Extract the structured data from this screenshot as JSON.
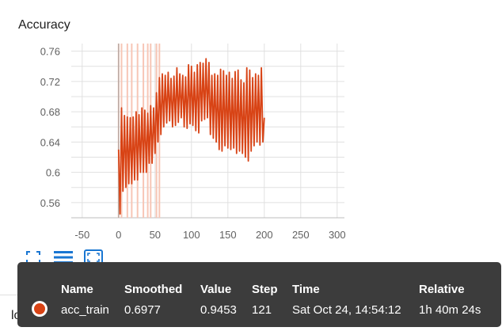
{
  "card": {
    "title": "Accuracy",
    "next_card_title": "loss"
  },
  "toolbar": {
    "icons": [
      "fit-domain-icon",
      "toggle-data-table-icon",
      "expand-card-icon"
    ]
  },
  "tooltip": {
    "headers": {
      "name": "Name",
      "smoothed": "Smoothed",
      "value": "Value",
      "step": "Step",
      "time": "Time",
      "relative": "Relative"
    },
    "row": {
      "name": "acc_train",
      "smoothed": "0.6977",
      "value": "0.9453",
      "step": "121",
      "time": "Sat Oct 24, 14:54:12",
      "relative": "1h 40m 24s"
    }
  },
  "colors": {
    "series": "#d84315",
    "series_faded": "#f7c6b6",
    "grid": "#e0e0e0",
    "tooltip_bg": "#3c3c3c"
  },
  "chart_data": {
    "type": "line",
    "title": "Accuracy",
    "xlabel": "",
    "ylabel": "",
    "xlim": [
      -65,
      310
    ],
    "ylim": [
      0.54,
      0.77
    ],
    "x_ticks": [
      -50,
      0,
      50,
      100,
      150,
      200,
      250,
      300
    ],
    "y_ticks": [
      0.56,
      0.6,
      0.64,
      0.68,
      0.72,
      0.76
    ],
    "y_tick_labels": [
      "0.56",
      "0.6",
      "0.64",
      "0.68",
      "0.72",
      "0.76"
    ],
    "grid": true,
    "series": [
      {
        "color": "#d84315",
        "x": [
          0,
          2,
          4,
          6,
          8,
          10,
          12,
          14,
          16,
          18,
          20,
          22,
          24,
          26,
          28,
          30,
          32,
          34,
          36,
          38,
          40,
          42,
          44,
          46,
          48,
          50,
          52,
          54,
          56,
          58,
          60,
          62,
          64,
          66,
          68,
          70,
          72,
          74,
          76,
          78,
          80,
          82,
          84,
          86,
          88,
          90,
          92,
          94,
          96,
          98,
          100,
          102,
          104,
          106,
          108,
          110,
          112,
          114,
          116,
          118,
          120,
          122,
          124,
          126,
          128,
          130,
          132,
          134,
          136,
          138,
          140,
          142,
          144,
          146,
          148,
          150,
          152,
          154,
          156,
          158,
          160,
          162,
          164,
          166,
          168,
          170,
          172,
          174,
          176,
          178,
          180,
          182,
          184,
          186,
          188,
          190,
          192,
          194,
          196,
          198,
          200
        ],
        "y": [
          0.63,
          0.545,
          0.685,
          0.575,
          0.675,
          0.58,
          0.673,
          0.585,
          0.672,
          0.585,
          0.673,
          0.59,
          0.68,
          0.59,
          0.676,
          0.6,
          0.685,
          0.6,
          0.682,
          0.6,
          0.678,
          0.612,
          0.688,
          0.612,
          0.685,
          0.625,
          0.705,
          0.64,
          0.725,
          0.65,
          0.73,
          0.66,
          0.728,
          0.665,
          0.732,
          0.668,
          0.724,
          0.66,
          0.727,
          0.662,
          0.738,
          0.666,
          0.73,
          0.672,
          0.728,
          0.66,
          0.726,
          0.658,
          0.742,
          0.664,
          0.74,
          0.662,
          0.732,
          0.655,
          0.742,
          0.652,
          0.745,
          0.668,
          0.744,
          0.67,
          0.75,
          0.672,
          0.745,
          0.65,
          0.728,
          0.645,
          0.73,
          0.64,
          0.728,
          0.63,
          0.736,
          0.628,
          0.734,
          0.635,
          0.728,
          0.632,
          0.732,
          0.63,
          0.724,
          0.632,
          0.733,
          0.625,
          0.735,
          0.628,
          0.722,
          0.625,
          0.718,
          0.62,
          0.738,
          0.615,
          0.735,
          0.628,
          0.725,
          0.635,
          0.73,
          0.64,
          0.728,
          0.636,
          0.738,
          0.64,
          0.672
        ]
      }
    ],
    "smoothed_reference_x": [
      0,
      4,
      12,
      18,
      26,
      34,
      40,
      44,
      52,
      56
    ]
  }
}
